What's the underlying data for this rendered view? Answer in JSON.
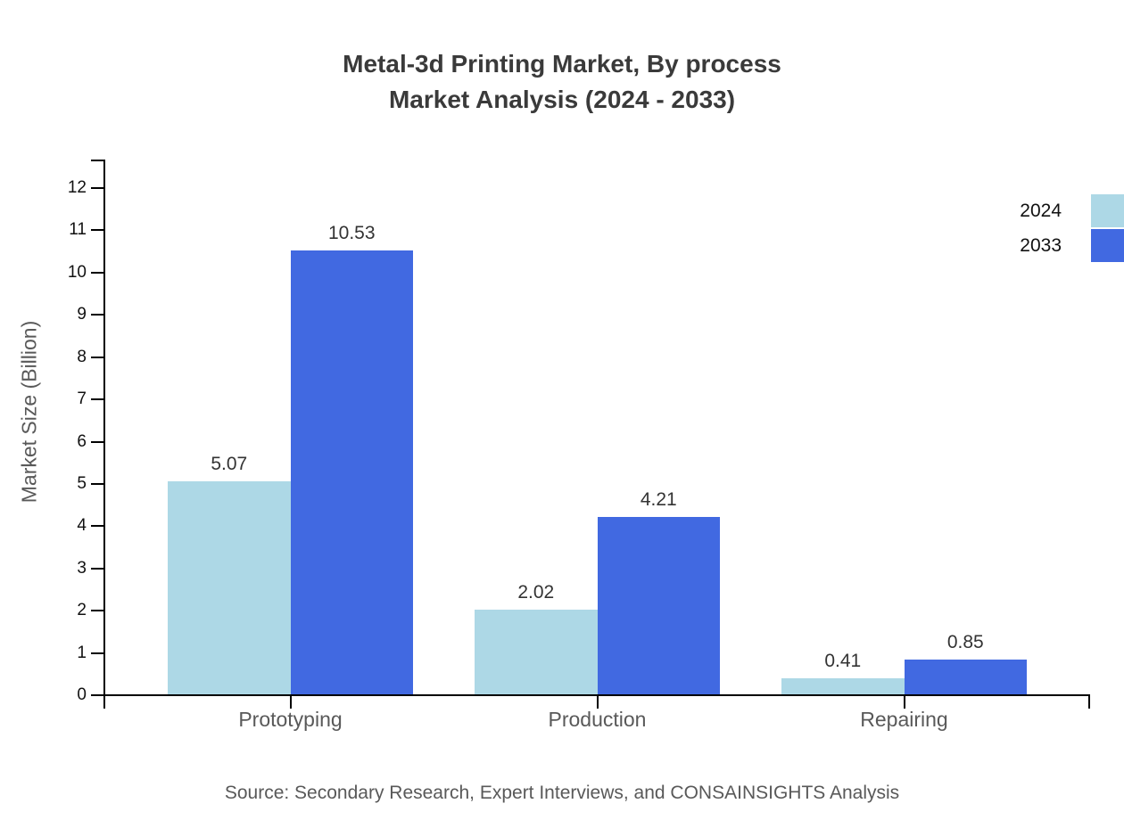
{
  "title": {
    "line1": "Metal-3d Printing Market, By process",
    "line2": "Market Analysis (2024 - 2033)"
  },
  "y_axis": {
    "label": "Market Size (Billion)",
    "ticks": [
      0,
      1,
      2,
      3,
      4,
      5,
      6,
      7,
      8,
      9,
      10,
      11,
      12
    ]
  },
  "x_axis": {
    "categories": [
      "Prototyping",
      "Production",
      "Repairing"
    ]
  },
  "legend": {
    "items": [
      {
        "label": "2024",
        "color": "#ADD8E6"
      },
      {
        "label": "2033",
        "color": "#4169E1"
      }
    ]
  },
  "source": "Source: Secondary Research, Expert Interviews, and CONSAINSIGHTS Analysis",
  "colors": {
    "axis": "#000000",
    "title_text": "#3A3A3A",
    "tick_text": "#111111",
    "category_text": "#595959",
    "value_label_text": "#333333",
    "source_text": "#595959",
    "series_2024": "#ADD8E6",
    "series_2033": "#4169E1"
  },
  "chart_data": {
    "type": "bar",
    "categories": [
      "Prototyping",
      "Production",
      "Repairing"
    ],
    "series": [
      {
        "name": "2024",
        "color": "#ADD8E6",
        "values": [
          5.07,
          2.02,
          0.41
        ]
      },
      {
        "name": "2033",
        "color": "#4169E1",
        "values": [
          10.53,
          4.21,
          0.85
        ]
      }
    ],
    "title": "Metal-3d Printing Market, By process Market Analysis (2024 - 2033)",
    "xlabel": "",
    "ylabel": "Market Size (Billion)",
    "ylim": [
      0,
      12
    ],
    "ytick_step": 1,
    "grid": false,
    "legend_position": "top-right",
    "value_labels": true,
    "value_label_format": "2dp"
  }
}
